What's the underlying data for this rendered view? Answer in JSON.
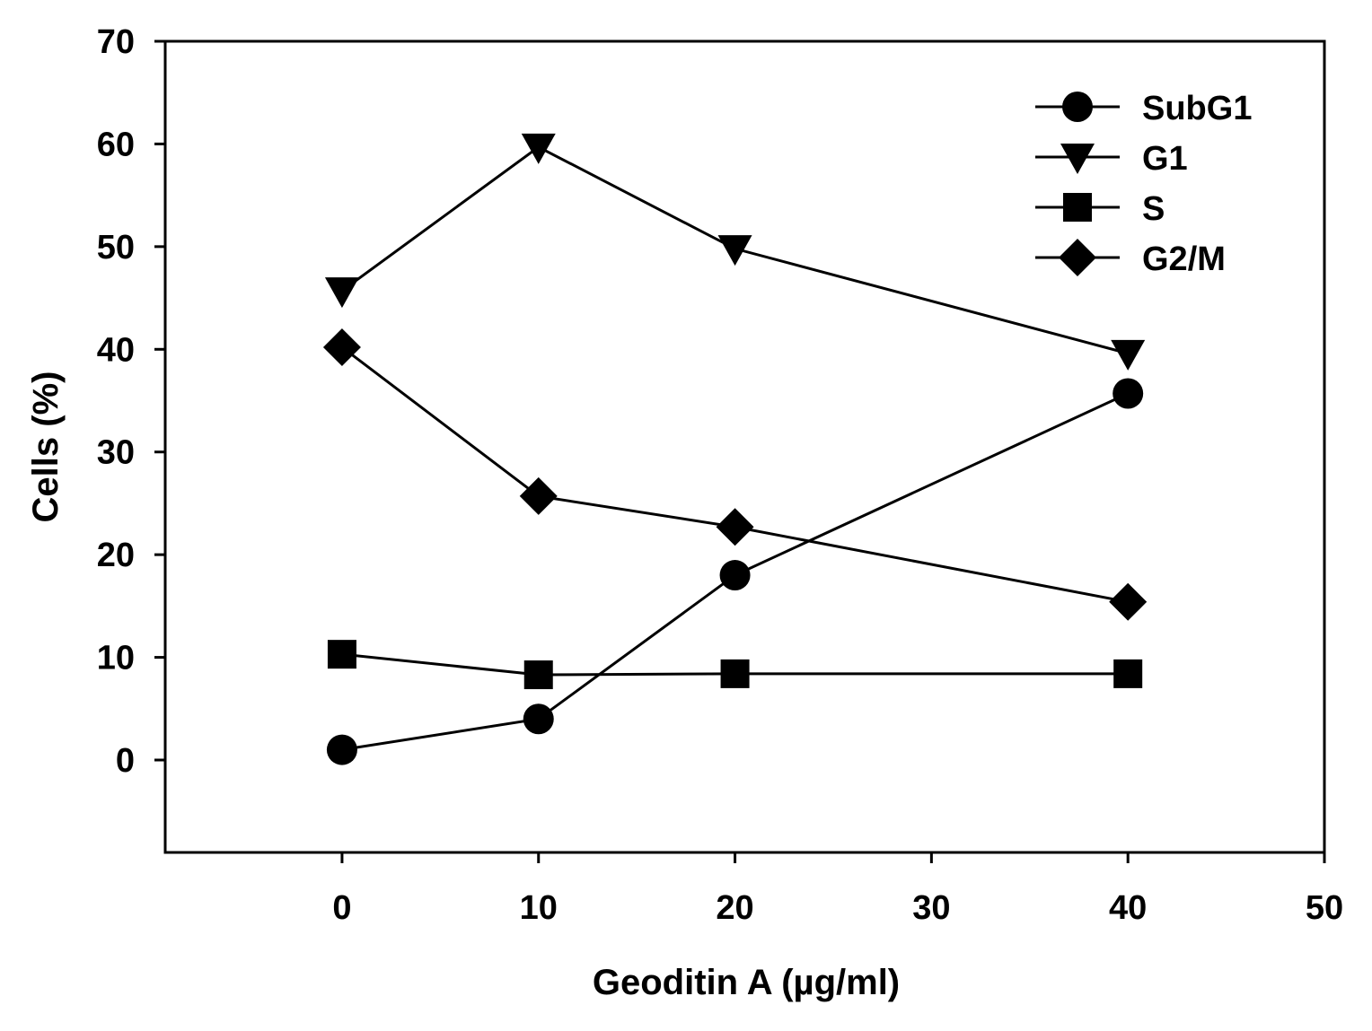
{
  "chart_data": {
    "type": "line",
    "xlabel": "Geoditin A (µg/ml)",
    "ylabel": "Cells (%)",
    "xlim": [
      -9,
      50
    ],
    "ylim": [
      -9,
      70
    ],
    "xticks": [
      0,
      10,
      20,
      30,
      40,
      50
    ],
    "yticks": [
      0,
      10,
      20,
      30,
      40,
      50,
      60,
      70
    ],
    "grid": false,
    "legend_position": "top-right",
    "series": [
      {
        "name": "SubG1",
        "marker": "circle",
        "x": [
          0,
          10,
          20,
          40
        ],
        "y": [
          1.0,
          4.0,
          18.0,
          35.7
        ]
      },
      {
        "name": "G1",
        "marker": "triangle-down",
        "x": [
          0,
          10,
          20,
          40
        ],
        "y": [
          45.7,
          59.7,
          49.8,
          39.6
        ]
      },
      {
        "name": "S",
        "marker": "square",
        "x": [
          0,
          10,
          20,
          40
        ],
        "y": [
          10.3,
          8.3,
          8.4,
          8.4
        ]
      },
      {
        "name": "G2/M",
        "marker": "diamond",
        "x": [
          0,
          10,
          20,
          40
        ],
        "y": [
          40.2,
          25.7,
          22.7,
          15.4
        ]
      }
    ],
    "colors": {
      "line": "#000000",
      "marker": "#000000",
      "background": "#ffffff"
    }
  }
}
